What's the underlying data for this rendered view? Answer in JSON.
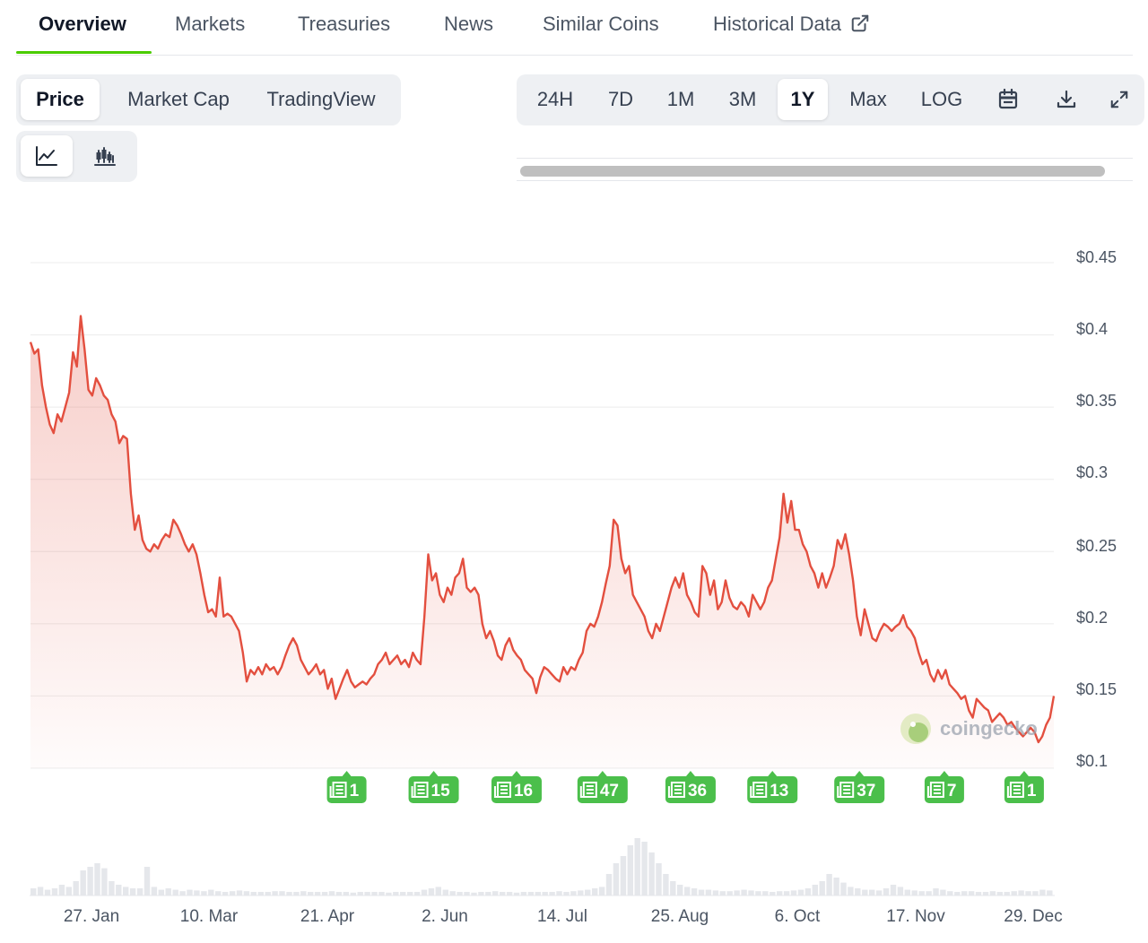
{
  "nav": {
    "tabs": [
      {
        "label": "Overview",
        "active": true
      },
      {
        "label": "Markets"
      },
      {
        "label": "Treasuries"
      },
      {
        "label": "News"
      },
      {
        "label": "Similar Coins"
      },
      {
        "label": "Historical Data",
        "icon": "external-link-icon"
      }
    ]
  },
  "chart_type_tabs": [
    {
      "label": "Price",
      "active": true
    },
    {
      "label": "Market Cap"
    },
    {
      "label": "TradingView"
    }
  ],
  "view_toggle": [
    {
      "icon": "line-chart-icon",
      "active": true
    },
    {
      "icon": "candlestick-icon"
    }
  ],
  "range_tabs": [
    {
      "label": "24H"
    },
    {
      "label": "7D"
    },
    {
      "label": "1M"
    },
    {
      "label": "3M"
    },
    {
      "label": "1Y",
      "active": true
    },
    {
      "label": "Max"
    },
    {
      "label": "LOG"
    }
  ],
  "range_icons": [
    "calendar-icon",
    "download-icon",
    "expand-icon"
  ],
  "watermark": "coingecko",
  "colors": {
    "accent": "#4bcc00",
    "line": "#e34f3f",
    "news_badge": "#4bbf4b",
    "grid": "#ececec"
  },
  "chart_data": {
    "type": "area",
    "title": "",
    "xlabel": "",
    "ylabel": "",
    "y_ticks": [
      "$0.45",
      "$0.4",
      "$0.35",
      "$0.3",
      "$0.25",
      "$0.2",
      "$0.15",
      "$0.1"
    ],
    "ylim": [
      0.1,
      0.45
    ],
    "x_ticks": [
      "27. Jan",
      "10. Mar",
      "21. Apr",
      "2. Jun",
      "14. Jul",
      "25. Aug",
      "6. Oct",
      "17. Nov",
      "29. Dec"
    ],
    "grid": true,
    "series": [
      {
        "values": [
          0.395,
          0.387,
          0.39,
          0.365,
          0.35,
          0.338,
          0.332,
          0.345,
          0.34,
          0.35,
          0.36,
          0.388,
          0.378,
          0.413,
          0.39,
          0.362,
          0.358,
          0.37,
          0.365,
          0.358,
          0.355,
          0.345,
          0.34,
          0.325,
          0.33,
          0.328,
          0.29,
          0.265,
          0.275,
          0.258,
          0.252,
          0.25,
          0.255,
          0.252,
          0.258,
          0.262,
          0.26,
          0.272,
          0.268,
          0.262,
          0.255,
          0.25,
          0.255,
          0.248,
          0.235,
          0.22,
          0.208,
          0.21,
          0.205,
          0.232,
          0.205,
          0.207,
          0.205,
          0.2,
          0.195,
          0.18,
          0.16,
          0.168,
          0.165,
          0.17,
          0.165,
          0.172,
          0.168,
          0.17,
          0.165,
          0.17,
          0.178,
          0.185,
          0.19,
          0.185,
          0.175,
          0.17,
          0.165,
          0.168,
          0.172,
          0.165,
          0.168,
          0.155,
          0.162,
          0.148,
          0.155,
          0.162,
          0.168,
          0.16,
          0.156,
          0.158,
          0.16,
          0.158,
          0.162,
          0.165,
          0.172,
          0.175,
          0.18,
          0.172,
          0.175,
          0.178,
          0.172,
          0.175,
          0.17,
          0.18,
          0.175,
          0.172,
          0.205,
          0.248,
          0.23,
          0.235,
          0.22,
          0.215,
          0.225,
          0.22,
          0.232,
          0.235,
          0.245,
          0.225,
          0.222,
          0.225,
          0.22,
          0.2,
          0.19,
          0.195,
          0.188,
          0.178,
          0.175,
          0.185,
          0.19,
          0.182,
          0.178,
          0.175,
          0.168,
          0.165,
          0.162,
          0.152,
          0.163,
          0.17,
          0.168,
          0.165,
          0.162,
          0.16,
          0.17,
          0.165,
          0.17,
          0.168,
          0.175,
          0.18,
          0.195,
          0.2,
          0.198,
          0.205,
          0.215,
          0.228,
          0.24,
          0.272,
          0.268,
          0.245,
          0.235,
          0.24,
          0.22,
          0.215,
          0.21,
          0.205,
          0.195,
          0.19,
          0.2,
          0.195,
          0.205,
          0.215,
          0.225,
          0.232,
          0.225,
          0.235,
          0.22,
          0.215,
          0.208,
          0.205,
          0.24,
          0.235,
          0.22,
          0.23,
          0.21,
          0.215,
          0.23,
          0.218,
          0.212,
          0.21,
          0.215,
          0.212,
          0.205,
          0.22,
          0.215,
          0.21,
          0.215,
          0.225,
          0.23,
          0.245,
          0.26,
          0.29,
          0.27,
          0.285,
          0.265,
          0.265,
          0.255,
          0.25,
          0.24,
          0.235,
          0.225,
          0.235,
          0.225,
          0.232,
          0.24,
          0.258,
          0.252,
          0.262,
          0.248,
          0.23,
          0.205,
          0.192,
          0.21,
          0.2,
          0.19,
          0.188,
          0.195,
          0.2,
          0.198,
          0.195,
          0.198,
          0.2,
          0.206,
          0.198,
          0.195,
          0.19,
          0.18,
          0.172,
          0.175,
          0.165,
          0.16,
          0.168,
          0.162,
          0.168,
          0.158,
          0.155,
          0.152,
          0.148,
          0.15,
          0.14,
          0.135,
          0.148,
          0.145,
          0.142,
          0.14,
          0.132,
          0.135,
          0.138,
          0.135,
          0.13,
          0.132,
          0.128,
          0.125,
          0.122,
          0.125,
          0.128,
          0.125,
          0.118,
          0.122,
          0.13,
          0.135,
          0.15
        ]
      }
    ],
    "news_markers": [
      {
        "label": "1",
        "at": 0.309
      },
      {
        "label": "15",
        "at": 0.394
      },
      {
        "label": "16",
        "at": 0.475
      },
      {
        "label": "47",
        "at": 0.559
      },
      {
        "label": "36",
        "at": 0.645
      },
      {
        "label": "13",
        "at": 0.725
      },
      {
        "label": "37",
        "at": 0.81
      },
      {
        "label": "7",
        "at": 0.893
      },
      {
        "label": "1",
        "at": 0.971
      }
    ],
    "volume": [
      0.1,
      0.12,
      0.08,
      0.1,
      0.15,
      0.12,
      0.2,
      0.35,
      0.4,
      0.45,
      0.38,
      0.2,
      0.15,
      0.12,
      0.1,
      0.1,
      0.4,
      0.12,
      0.08,
      0.1,
      0.08,
      0.06,
      0.08,
      0.07,
      0.06,
      0.08,
      0.06,
      0.05,
      0.06,
      0.07,
      0.06,
      0.05,
      0.05,
      0.05,
      0.06,
      0.06,
      0.05,
      0.05,
      0.06,
      0.05,
      0.05,
      0.05,
      0.06,
      0.05,
      0.05,
      0.04,
      0.05,
      0.05,
      0.05,
      0.05,
      0.04,
      0.05,
      0.05,
      0.05,
      0.05,
      0.08,
      0.1,
      0.12,
      0.08,
      0.06,
      0.05,
      0.05,
      0.04,
      0.05,
      0.05,
      0.06,
      0.05,
      0.05,
      0.04,
      0.05,
      0.05,
      0.05,
      0.05,
      0.05,
      0.06,
      0.05,
      0.06,
      0.07,
      0.08,
      0.1,
      0.12,
      0.3,
      0.45,
      0.55,
      0.7,
      0.8,
      0.75,
      0.6,
      0.45,
      0.3,
      0.2,
      0.15,
      0.12,
      0.1,
      0.08,
      0.08,
      0.07,
      0.06,
      0.06,
      0.07,
      0.08,
      0.07,
      0.06,
      0.06,
      0.05,
      0.06,
      0.06,
      0.07,
      0.08,
      0.1,
      0.15,
      0.2,
      0.3,
      0.25,
      0.18,
      0.12,
      0.1,
      0.08,
      0.08,
      0.07,
      0.1,
      0.15,
      0.12,
      0.08,
      0.07,
      0.06,
      0.06,
      0.1,
      0.08,
      0.06,
      0.05,
      0.06,
      0.06,
      0.05,
      0.05,
      0.06,
      0.05,
      0.05,
      0.06,
      0.07,
      0.06,
      0.06,
      0.08,
      0.07
    ]
  }
}
